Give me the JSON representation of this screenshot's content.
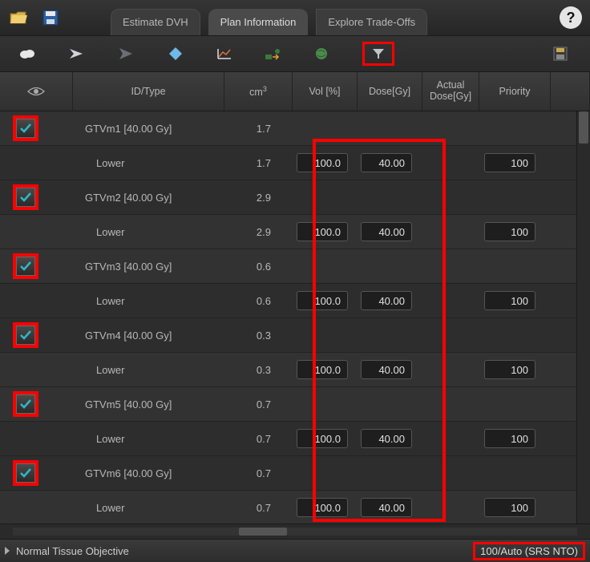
{
  "tabs": {
    "estimate": "Estimate DVH",
    "plan": "Plan Information",
    "trade": "Explore Trade-Offs"
  },
  "columns": {
    "id": "ID/Type",
    "cm3": "cm",
    "cm3_sup": "3",
    "vol": "Vol [%]",
    "dose": "Dose[Gy]",
    "adose_l1": "Actual",
    "adose_l2": "Dose[Gy]",
    "priority": "Priority"
  },
  "rows": [
    {
      "label": "GTVm1 [40.00 Gy]",
      "cm3": "1.7",
      "sub": {
        "label": "Lower",
        "cm3": "1.7",
        "vol": "100.0",
        "dose": "40.00",
        "pri": "100"
      }
    },
    {
      "label": "GTVm2 [40.00 Gy]",
      "cm3": "2.9",
      "sub": {
        "label": "Lower",
        "cm3": "2.9",
        "vol": "100.0",
        "dose": "40.00",
        "pri": "100"
      }
    },
    {
      "label": "GTVm3 [40.00 Gy]",
      "cm3": "0.6",
      "sub": {
        "label": "Lower",
        "cm3": "0.6",
        "vol": "100.0",
        "dose": "40.00",
        "pri": "100"
      }
    },
    {
      "label": "GTVm4 [40.00 Gy]",
      "cm3": "0.3",
      "sub": {
        "label": "Lower",
        "cm3": "0.3",
        "vol": "100.0",
        "dose": "40.00",
        "pri": "100"
      }
    },
    {
      "label": "GTVm5 [40.00 Gy]",
      "cm3": "0.7",
      "sub": {
        "label": "Lower",
        "cm3": "0.7",
        "vol": "100.0",
        "dose": "40.00",
        "pri": "100"
      }
    },
    {
      "label": "GTVm6 [40.00 Gy]",
      "cm3": "0.7",
      "sub": {
        "label": "Lower",
        "cm3": "0.7",
        "vol": "100.0",
        "dose": "40.00",
        "pri": "100"
      }
    }
  ],
  "footer": {
    "label": "Normal Tissue Objective",
    "value": "100/Auto (SRS NTO)"
  },
  "colors": {
    "highlight": "#ff0000",
    "check": "#2fb7c9"
  }
}
